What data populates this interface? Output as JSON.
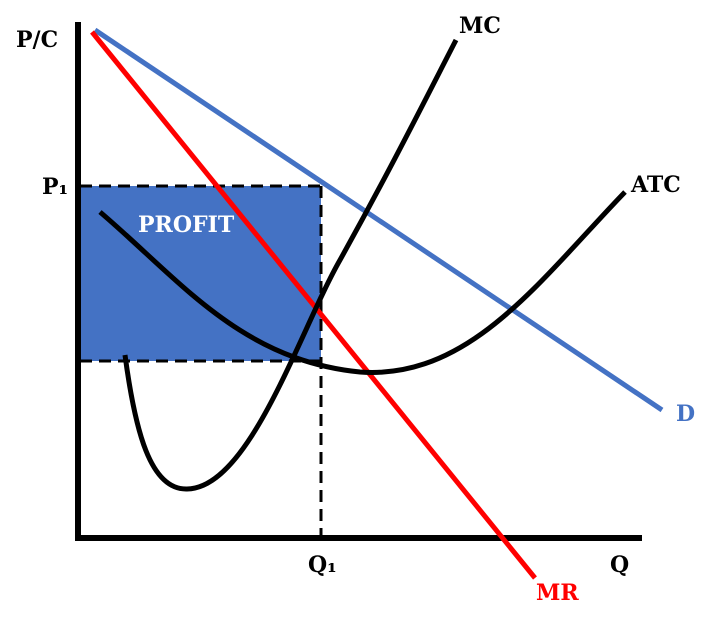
{
  "labels": {
    "y_axis": "P/C",
    "x_axis": "Q",
    "price": "P₁",
    "quantity": "Q₁",
    "profit": "PROFIT",
    "mc": "MC",
    "atc": "ATC",
    "demand": "D",
    "mr": "MR"
  },
  "colors": {
    "demand": "#4472C4",
    "mr": "#FF0000",
    "profit_fill": "#4472C4",
    "curves": "#000000"
  }
}
